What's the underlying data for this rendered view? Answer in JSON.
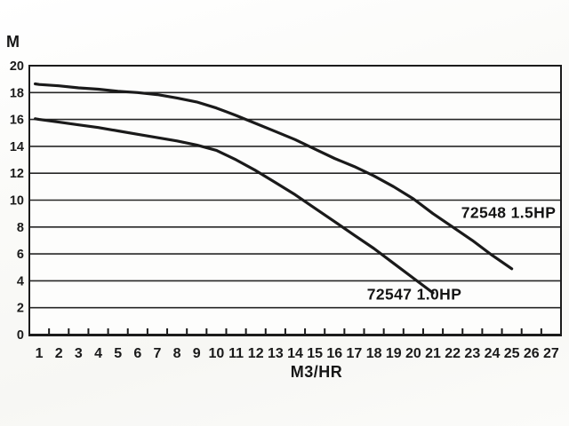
{
  "page": {
    "background": "#fbfbf9",
    "plot_background": "#fdfdfc"
  },
  "chart_data": {
    "type": "line",
    "title": "",
    "xlabel": "M3/HR",
    "ylabel": "M",
    "xlim": [
      0.5,
      27.5
    ],
    "ylim": [
      0,
      20
    ],
    "x_ticks": [
      1,
      2,
      3,
      4,
      5,
      6,
      7,
      8,
      9,
      10,
      11,
      12,
      13,
      14,
      15,
      16,
      17,
      18,
      19,
      20,
      21,
      22,
      23,
      24,
      25,
      26,
      27
    ],
    "y_ticks": [
      0,
      2,
      4,
      6,
      8,
      10,
      12,
      14,
      16,
      18,
      20
    ],
    "grid": "horizontal-only",
    "legend_position": "inline-labels",
    "line_color": "#1a1a1a",
    "series": [
      {
        "name": "72548-1.5HP",
        "label": "72548 1.5HP",
        "x": [
          0.8,
          1,
          2,
          3,
          4,
          5,
          6,
          7,
          8,
          9,
          10,
          11,
          12,
          13,
          14,
          15,
          16,
          17,
          18,
          19,
          20,
          21,
          22,
          23,
          24,
          25
        ],
        "values": [
          18.65,
          18.6,
          18.5,
          18.35,
          18.25,
          18.1,
          18.0,
          17.85,
          17.6,
          17.3,
          16.85,
          16.3,
          15.7,
          15.1,
          14.5,
          13.8,
          13.1,
          12.5,
          11.8,
          11.0,
          10.1,
          9.0,
          8.0,
          7.0,
          5.9,
          4.9
        ]
      },
      {
        "name": "72547-1.0HP",
        "label": "72547 1.0HP",
        "x": [
          0.8,
          1,
          2,
          3,
          4,
          5,
          6,
          7,
          8,
          9,
          10,
          11,
          12,
          13,
          14,
          15,
          16,
          17,
          18,
          19,
          20,
          21
        ],
        "values": [
          16.05,
          16.0,
          15.8,
          15.6,
          15.4,
          15.15,
          14.9,
          14.65,
          14.4,
          14.1,
          13.7,
          13.0,
          12.2,
          11.3,
          10.4,
          9.4,
          8.4,
          7.4,
          6.4,
          5.3,
          4.2,
          3.1
        ]
      }
    ]
  }
}
